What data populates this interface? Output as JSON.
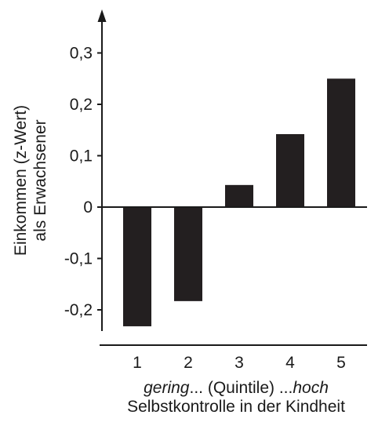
{
  "chart_data": {
    "type": "bar",
    "categories": [
      "1",
      "2",
      "3",
      "4",
      "5"
    ],
    "values": [
      -0.232,
      -0.183,
      0.043,
      0.142,
      0.25
    ],
    "ylim": [
      -0.26,
      0.37
    ],
    "yticks": [
      0.3,
      0.2,
      0.1,
      0,
      -0.1,
      -0.2
    ],
    "ytick_labels": [
      "0,3",
      "0,2",
      "0,1",
      "0",
      "-0,1",
      "-0,2"
    ],
    "ylabel_line1": "Einkommen (z-Wert)",
    "ylabel_line2": "als Erwachsener",
    "xlabel_italic_left": "gering",
    "xlabel_middle": "... (Quintile) ...",
    "xlabel_italic_right": "hoch",
    "xlabel_line2": "Selbstkontrolle in der Kindheit",
    "bar_color": "#231f20",
    "grid": false,
    "legend": "none"
  }
}
